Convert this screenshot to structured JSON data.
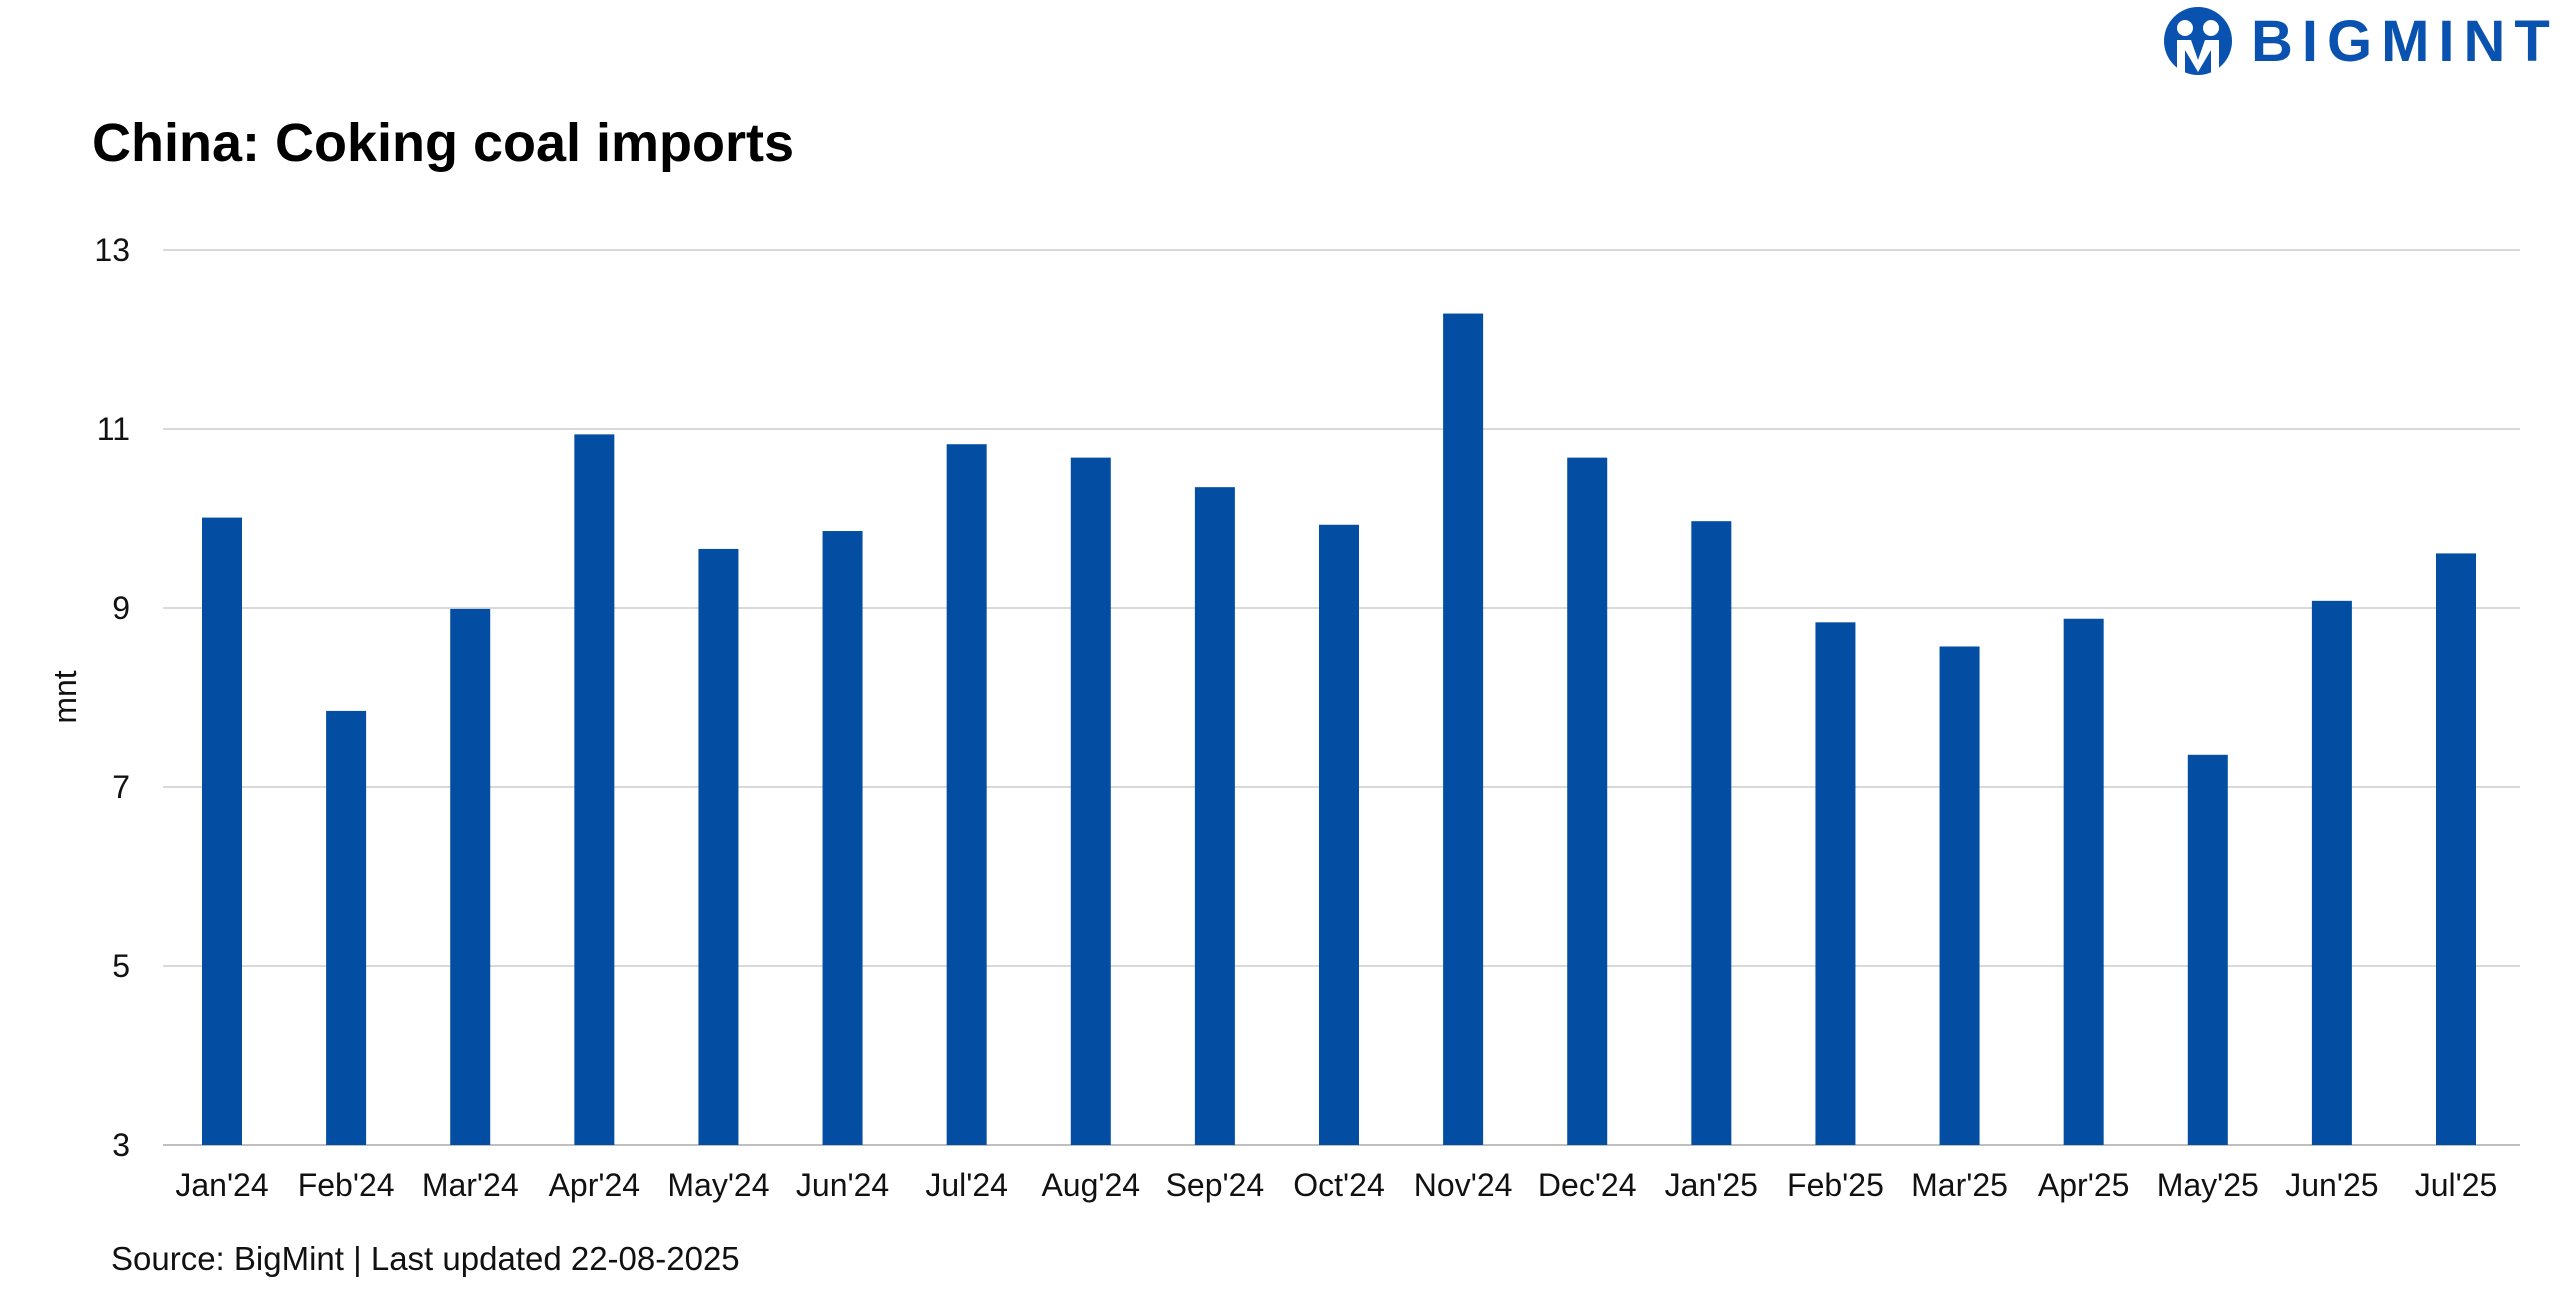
{
  "logo": {
    "text": "BIGMINT"
  },
  "source": "Source: BigMint | Last updated 22-08-2025",
  "colors": {
    "bar": "#034EA2",
    "grid": "#d9d9d9"
  },
  "chart_data": {
    "type": "bar",
    "title": "China: Coking coal imports",
    "xlabel": "",
    "ylabel": "mnt",
    "ylim": [
      3,
      13
    ],
    "yticks": [
      3,
      5,
      7,
      9,
      11,
      13
    ],
    "grid": true,
    "categories": [
      "Jan'24",
      "Feb'24",
      "Mar'24",
      "Apr'24",
      "May'24",
      "Jun'24",
      "Jul'24",
      "Aug'24",
      "Sep'24",
      "Oct'24",
      "Nov'24",
      "Dec'24",
      "Jan'25",
      "Feb'25",
      "Mar'25",
      "Apr'25",
      "May'25",
      "Jun'25",
      "Jul'25"
    ],
    "values": [
      10.01,
      7.85,
      8.99,
      10.94,
      9.66,
      9.86,
      10.83,
      10.68,
      10.35,
      9.93,
      12.29,
      10.68,
      9.97,
      8.84,
      8.57,
      8.88,
      7.36,
      9.08,
      9.61
    ]
  }
}
